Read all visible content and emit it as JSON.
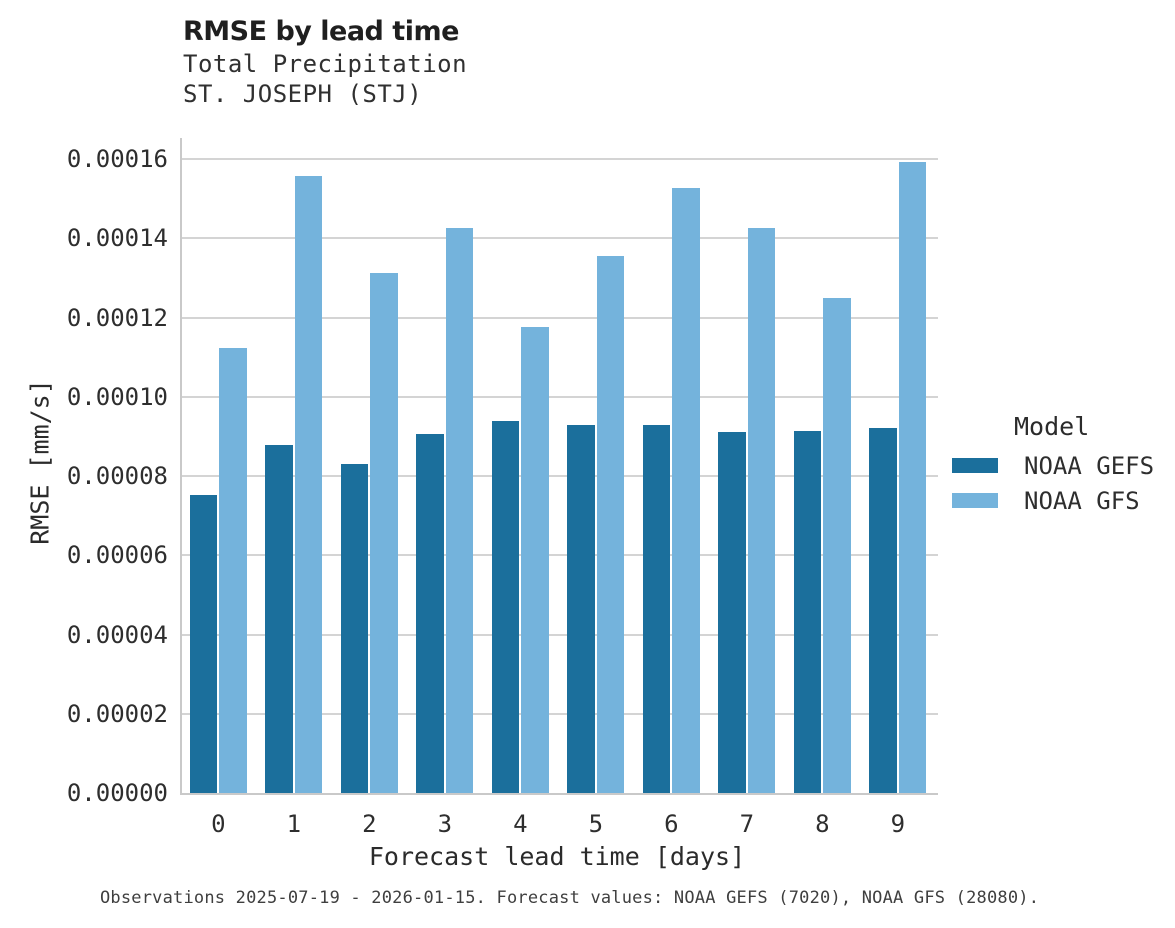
{
  "header": {
    "title": "RMSE by lead time",
    "subtitle1": "Total Precipitation",
    "subtitle2": "ST. JOSEPH (STJ)"
  },
  "chart_data": {
    "type": "bar",
    "title": "RMSE by lead time",
    "subtitle": [
      "Total Precipitation",
      "ST. JOSEPH (STJ)"
    ],
    "categories": [
      "0",
      "1",
      "2",
      "3",
      "4",
      "5",
      "6",
      "7",
      "8",
      "9"
    ],
    "series": [
      {
        "name": "NOAA GEFS",
        "color": "#1b6f9c",
        "values": [
          7.53e-05,
          8.78e-05,
          8.3e-05,
          9.05e-05,
          9.4e-05,
          9.28e-05,
          9.3e-05,
          9.1e-05,
          9.13e-05,
          9.22e-05
        ]
      },
      {
        "name": "NOAA GFS",
        "color": "#74b3dc",
        "values": [
          0.0001124,
          0.0001558,
          0.0001312,
          0.0001426,
          0.0001176,
          0.0001355,
          0.0001527,
          0.0001426,
          0.0001248,
          0.0001592
        ]
      }
    ],
    "xlabel": "Forecast lead time [days]",
    "ylabel": "RMSE [mm/s]",
    "ylim": [
      0,
      0.00016
    ],
    "ytick_step": 2e-05,
    "ytick_format_decimals": 5,
    "grid": true,
    "legend_title": "Model",
    "legend_position": "right"
  },
  "legend": {
    "title": "Model",
    "entries": [
      {
        "label": "NOAA GEFS",
        "color": "#1b6f9c"
      },
      {
        "label": "NOAA GFS",
        "color": "#74b3dc"
      }
    ]
  },
  "caption": {
    "text": "Observations 2025-07-19 - 2026-01-15. Forecast values: NOAA GEFS (7020), NOAA GFS (28080)."
  }
}
